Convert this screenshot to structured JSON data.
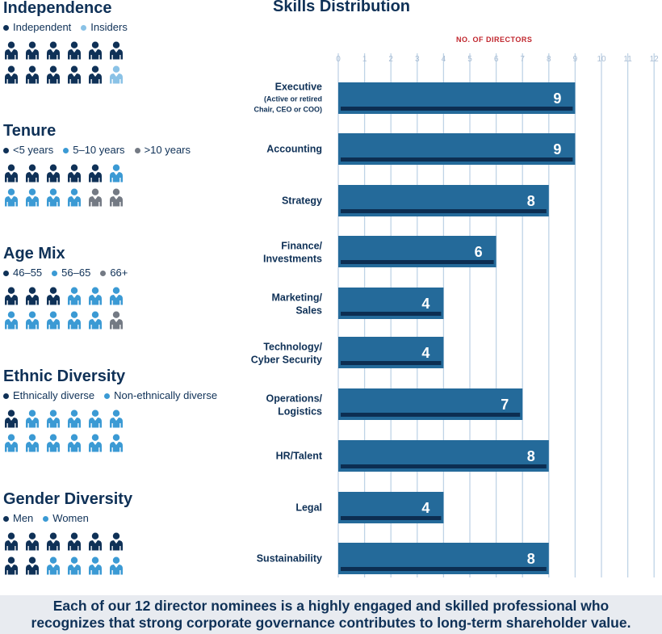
{
  "colors": {
    "navy": "#0f3157",
    "blue": "#3b9ad4",
    "light_blue": "#8ac2e6",
    "gray": "#747a84",
    "bar": "#246a9a",
    "bar_stripe": "#0c2e52",
    "grid": "#bfd3e6",
    "accent": "#c0262d"
  },
  "sections": [
    {
      "title": "Independence",
      "legend": [
        {
          "label": "Independent",
          "color": "navy"
        },
        {
          "label": "Insiders",
          "color": "light_blue"
        }
      ],
      "people": [
        "navy",
        "navy",
        "navy",
        "navy",
        "navy",
        "navy",
        "navy",
        "navy",
        "navy",
        "navy",
        "navy",
        "light_blue"
      ]
    },
    {
      "title": "Tenure",
      "legend": [
        {
          "label": "<5 years",
          "color": "navy"
        },
        {
          "label": "5–10 years",
          "color": "blue"
        },
        {
          "label": ">10 years",
          "color": "gray"
        }
      ],
      "people": [
        "navy",
        "navy",
        "navy",
        "navy",
        "navy",
        "blue",
        "blue",
        "blue",
        "blue",
        "blue",
        "gray",
        "gray"
      ]
    },
    {
      "title": "Age Mix",
      "legend": [
        {
          "label": "46–55",
          "color": "navy"
        },
        {
          "label": "56–65",
          "color": "blue"
        },
        {
          "label": "66+",
          "color": "gray"
        }
      ],
      "people": [
        "navy",
        "navy",
        "navy",
        "blue",
        "blue",
        "blue",
        "blue",
        "blue",
        "blue",
        "blue",
        "blue",
        "gray"
      ]
    },
    {
      "title": "Ethnic Diversity",
      "legend": [
        {
          "label": "Ethnically diverse",
          "color": "navy"
        },
        {
          "label": "Non-ethnically diverse",
          "color": "blue"
        }
      ],
      "people": [
        "navy",
        "blue",
        "blue",
        "blue",
        "blue",
        "blue",
        "blue",
        "blue",
        "blue",
        "blue",
        "blue",
        "blue"
      ]
    },
    {
      "title": "Gender Diversity",
      "legend": [
        {
          "label": "Men",
          "color": "navy"
        },
        {
          "label": "Women",
          "color": "blue"
        }
      ],
      "people": [
        "navy",
        "navy",
        "navy",
        "navy",
        "navy",
        "navy",
        "navy",
        "navy",
        "blue",
        "blue",
        "blue",
        "blue"
      ]
    }
  ],
  "chart_data": {
    "type": "bar",
    "orientation": "horizontal",
    "title": "Skills Distribution",
    "xlabel": "NO. OF DIRECTORS",
    "xlim": [
      0,
      12
    ],
    "xticks": [
      0,
      1,
      2,
      3,
      4,
      5,
      6,
      7,
      8,
      9,
      10,
      11,
      12
    ],
    "grid": true,
    "categories": [
      {
        "lines": [
          "Executive",
          "(Active or retired",
          "Chair, CEO or COO)"
        ]
      },
      {
        "lines": [
          "Accounting"
        ]
      },
      {
        "lines": [
          "Strategy"
        ]
      },
      {
        "lines": [
          "Finance/",
          "Investments"
        ]
      },
      {
        "lines": [
          "Marketing/",
          "Sales"
        ]
      },
      {
        "lines": [
          "Technology/",
          "Cyber Security"
        ]
      },
      {
        "lines": [
          "Operations/",
          "Logistics"
        ]
      },
      {
        "lines": [
          "HR/Talent"
        ]
      },
      {
        "lines": [
          "Legal"
        ]
      },
      {
        "lines": [
          "Sustainability"
        ]
      }
    ],
    "values": [
      9,
      9,
      8,
      6,
      4,
      4,
      7,
      8,
      4,
      8
    ]
  },
  "footer": {
    "line1": "Each of our 12 director nominees is a highly engaged and skilled professional who",
    "line2": "recognizes that strong corporate governance contributes to long-term shareholder value."
  }
}
